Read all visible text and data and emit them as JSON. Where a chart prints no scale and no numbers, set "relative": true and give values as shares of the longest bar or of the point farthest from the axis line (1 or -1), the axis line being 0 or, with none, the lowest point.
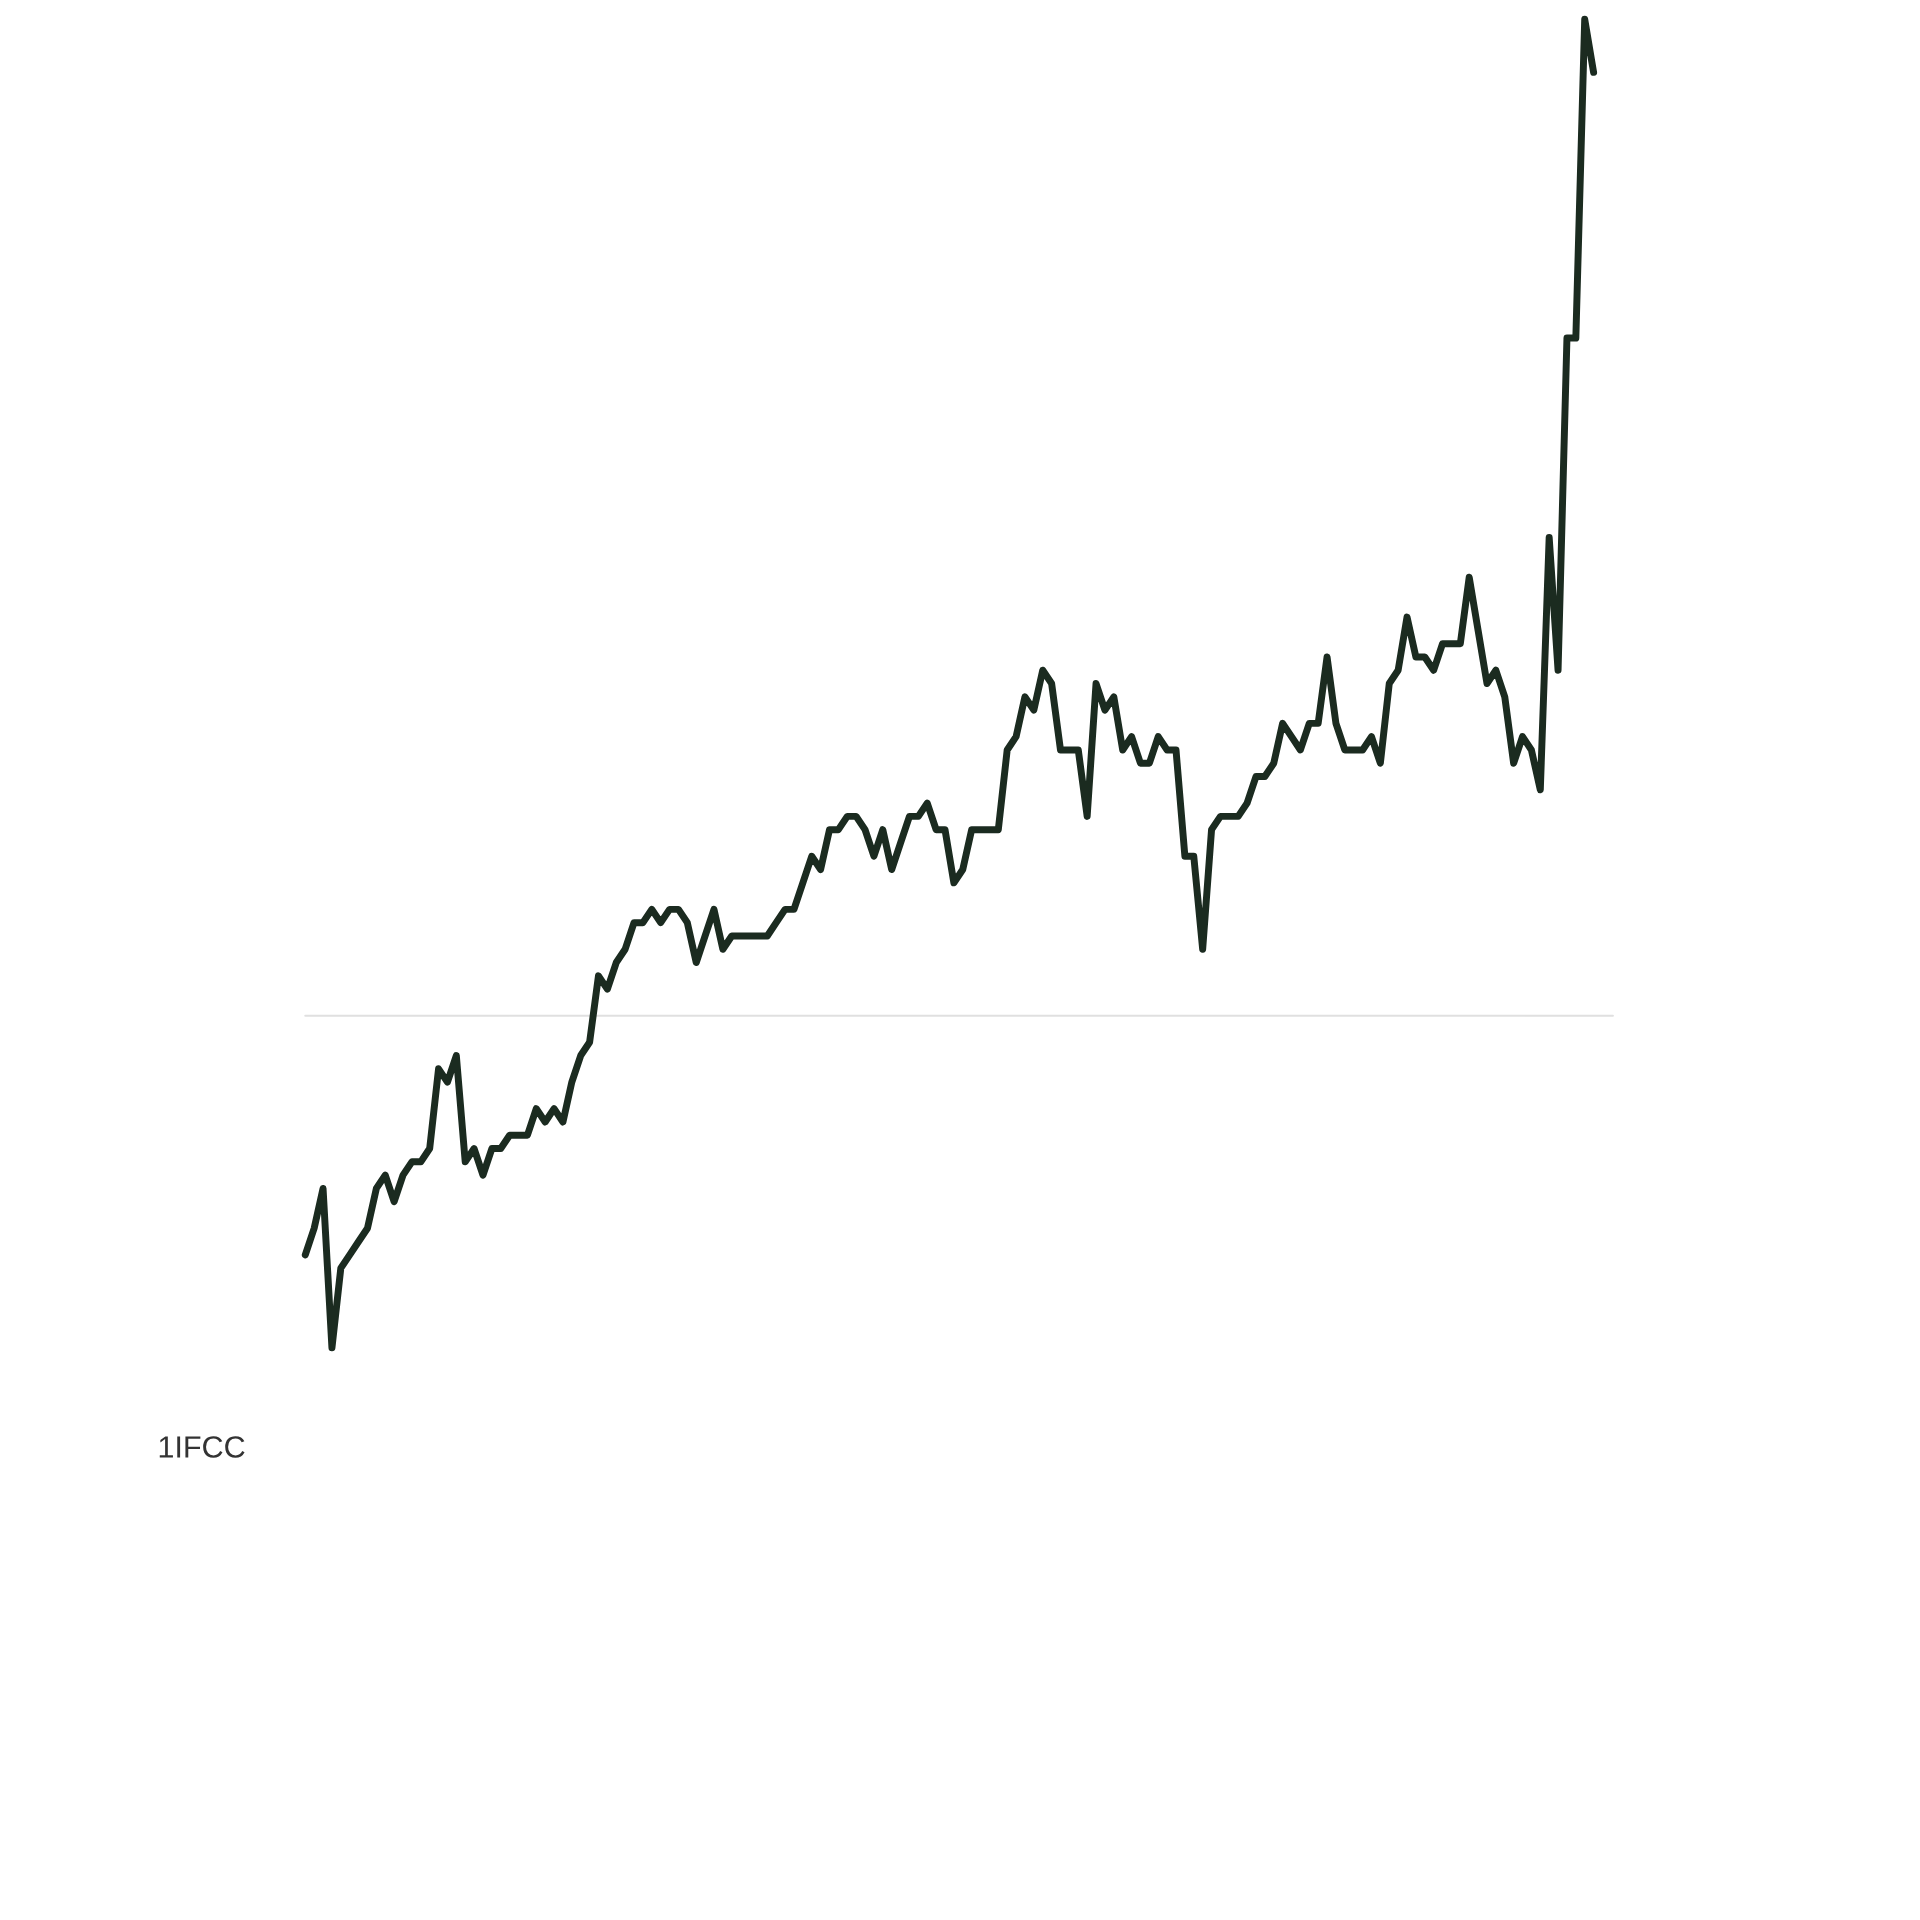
{
  "chart_data": {
    "type": "line",
    "relative": true,
    "color": "#1b2b20",
    "marker": "none",
    "line_style": "solid",
    "categories": [
      null,
      null,
      null,
      null,
      null,
      null,
      null,
      null,
      null,
      null,
      null,
      null,
      null,
      null,
      null,
      null,
      null,
      null,
      null,
      null,
      null,
      null,
      null,
      null,
      null,
      null,
      null,
      null,
      null,
      null,
      null,
      null,
      null,
      null,
      null,
      null,
      null,
      null,
      null,
      null,
      null,
      null,
      null,
      null,
      null,
      null,
      null,
      null,
      null,
      null,
      null,
      null,
      null,
      null,
      null,
      null,
      null,
      null,
      null,
      null,
      null,
      null,
      null,
      null,
      null,
      null,
      null,
      null,
      null,
      null,
      null,
      null,
      null,
      null,
      null,
      null,
      null,
      null,
      null,
      null,
      null,
      null,
      null,
      null,
      null,
      null,
      null,
      null,
      null,
      null,
      null,
      null,
      null,
      null,
      null,
      null,
      null,
      null,
      null,
      null,
      null,
      null,
      null,
      null,
      null,
      null,
      null,
      null,
      null,
      null,
      null,
      null,
      null,
      null,
      null,
      null,
      null,
      null,
      null,
      null,
      null,
      null,
      null,
      null,
      null,
      null,
      null,
      null,
      null,
      null,
      null,
      null,
      null,
      null,
      null,
      null,
      null,
      null,
      null,
      null,
      null,
      null,
      null,
      null,
      null,
      null
    ],
    "values": [
      0.07,
      0.09,
      0.12,
      0,
      0.06,
      0.07,
      0.08,
      0.09,
      0.12,
      0.13,
      0.11,
      0.13,
      0.14,
      0.14,
      0.15,
      0.21,
      0.2,
      0.22,
      0.14,
      0.15,
      0.13,
      0.15,
      0.15,
      0.16,
      0.16,
      0.16,
      0.18,
      0.17,
      0.18,
      0.17,
      0.2,
      0.22,
      0.23,
      0.28,
      0.27,
      0.29,
      0.3,
      0.32,
      0.32,
      0.33,
      0.32,
      0.33,
      0.33,
      0.32,
      0.29,
      0.31,
      0.33,
      0.3,
      0.31,
      0.31,
      0.31,
      0.31,
      0.31,
      0.32,
      0.33,
      0.33,
      0.35,
      0.37,
      0.36,
      0.39,
      0.39,
      0.4,
      0.4,
      0.39,
      0.37,
      0.39,
      0.36,
      0.38,
      0.4,
      0.4,
      0.41,
      0.39,
      0.39,
      0.35,
      0.36,
      0.39,
      0.39,
      0.39,
      0.39,
      0.45,
      0.46,
      0.49,
      0.48,
      0.51,
      0.5,
      0.45,
      0.45,
      0.45,
      0.4,
      0.5,
      0.48,
      0.49,
      0.45,
      0.46,
      0.44,
      0.44,
      0.46,
      0.45,
      0.45,
      0.37,
      0.37,
      0.3,
      0.39,
      0.4,
      0.4,
      0.4,
      0.41,
      0.43,
      0.43,
      0.44,
      0.47,
      0.46,
      0.45,
      0.47,
      0.47,
      0.52,
      0.47,
      0.45,
      0.45,
      0.45,
      0.46,
      0.44,
      0.5,
      0.51,
      0.55,
      0.52,
      0.52,
      0.51,
      0.53,
      0.53,
      0.53,
      0.58,
      0.54,
      0.5,
      0.51,
      0.49,
      0.44,
      0.46,
      0.45,
      0.42,
      0.61,
      0.51,
      0.76,
      0.76,
      1,
      0.96
    ],
    "ref_lines": [
      {
        "axis": "y",
        "value": 0.25,
        "color": "#e0e0e0"
      }
    ],
    "annotations": [
      "1IFCC"
    ]
  }
}
